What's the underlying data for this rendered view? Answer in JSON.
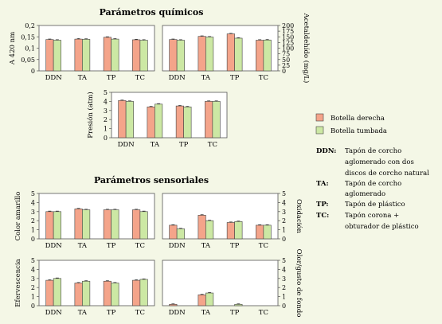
{
  "titles": {
    "chemical": "Parámetros químicos",
    "sensory": "Parámetros sensoriales"
  },
  "legend": {
    "series_a": "Botella derecha",
    "series_b": "Botella tumbada",
    "color_a": "#f4a48a",
    "color_b": "#cce8a4"
  },
  "glossary": [
    {
      "abbr": "DDN:",
      "lines": [
        "Tapón de corcho",
        "aglomerado con dos",
        "discos de corcho natural"
      ]
    },
    {
      "abbr": "TA:",
      "lines": [
        "Tapón de corcho",
        "aglomerado"
      ]
    },
    {
      "abbr": "TP:",
      "lines": [
        "Tapón de plástico"
      ]
    },
    {
      "abbr": "TC:",
      "lines": [
        "Tapón corona +",
        "obturador de plástico"
      ]
    }
  ],
  "chart_data": [
    {
      "id": "absorbance",
      "type": "bar",
      "categories": [
        "DDN",
        "TA",
        "TP",
        "TC"
      ],
      "ylabel": "A 420 nm",
      "ylim": [
        0,
        0.2
      ],
      "yticks": [
        "0",
        "0,05",
        "0,1",
        "0,15",
        "0,2"
      ],
      "axis_side": "left",
      "series": [
        {
          "name": "Botella derecha",
          "values": [
            0.138,
            0.14,
            0.148,
            0.137
          ]
        },
        {
          "name": "Botella tumbada",
          "values": [
            0.135,
            0.139,
            0.14,
            0.135
          ]
        }
      ]
    },
    {
      "id": "acetaldehyde",
      "type": "bar",
      "categories": [
        "DDN",
        "TA",
        "TP",
        "TC"
      ],
      "ylabel": "Acetaldehído (mg/L)",
      "ylim": [
        0,
        200
      ],
      "yticks": [
        "0",
        "25",
        "50",
        "75",
        "100",
        "125",
        "150",
        "175",
        "200"
      ],
      "axis_side": "right",
      "series": [
        {
          "name": "Botella derecha",
          "values": [
            138,
            152,
            163,
            135
          ]
        },
        {
          "name": "Botella tumbada",
          "values": [
            135,
            149,
            144,
            136
          ]
        }
      ]
    },
    {
      "id": "pressure",
      "type": "bar",
      "categories": [
        "DDN",
        "TA",
        "TP",
        "TC"
      ],
      "ylabel": "Presión (atm)",
      "ylim": [
        0,
        5
      ],
      "yticks": [
        "0",
        "1",
        "2",
        "3",
        "4",
        "5"
      ],
      "axis_side": "left",
      "series": [
        {
          "name": "Botella derecha",
          "values": [
            4.1,
            3.4,
            3.5,
            4.0
          ]
        },
        {
          "name": "Botella tumbada",
          "values": [
            4.0,
            3.7,
            3.4,
            4.0
          ]
        }
      ]
    },
    {
      "id": "yellow_color",
      "type": "bar",
      "categories": [
        "DDN",
        "TA",
        "TP",
        "TC"
      ],
      "ylabel": "Color amarillo",
      "ylim": [
        0,
        5
      ],
      "yticks": [
        "0",
        "1",
        "2",
        "3",
        "4",
        "5"
      ],
      "axis_side": "left",
      "series": [
        {
          "name": "Botella derecha",
          "values": [
            3.0,
            3.3,
            3.2,
            3.2
          ]
        },
        {
          "name": "Botella tumbada",
          "values": [
            3.0,
            3.2,
            3.2,
            3.0
          ]
        }
      ]
    },
    {
      "id": "oxidation",
      "type": "bar",
      "categories": [
        "DDN",
        "TA",
        "TP",
        "TC"
      ],
      "ylabel": "Oxidación",
      "ylim": [
        0,
        5
      ],
      "yticks": [
        "0",
        "1",
        "2",
        "3",
        "4",
        "5"
      ],
      "axis_side": "right",
      "series": [
        {
          "name": "Botella derecha",
          "values": [
            1.5,
            2.6,
            1.8,
            1.5
          ]
        },
        {
          "name": "Botella tumbada",
          "values": [
            1.1,
            2.0,
            1.9,
            1.5
          ]
        }
      ]
    },
    {
      "id": "effervescence",
      "type": "bar",
      "categories": [
        "DDN",
        "TA",
        "TP",
        "TC"
      ],
      "ylabel": "Efervescencia",
      "ylim": [
        0,
        5
      ],
      "yticks": [
        "0",
        "1",
        "2",
        "3",
        "4",
        "5"
      ],
      "axis_side": "left",
      "series": [
        {
          "name": "Botella derecha",
          "values": [
            2.8,
            2.5,
            2.7,
            2.8
          ]
        },
        {
          "name": "Botella tumbada",
          "values": [
            3.0,
            2.7,
            2.5,
            2.9
          ]
        }
      ]
    },
    {
      "id": "cork_taint",
      "type": "bar",
      "categories": [
        "DDN",
        "TA",
        "TP",
        "TC"
      ],
      "ylabel": "Olor/gusto de fondo",
      "ylim": [
        0,
        5
      ],
      "yticks": [
        "0",
        "1",
        "2",
        "3",
        "4",
        "5"
      ],
      "axis_side": "right",
      "series": [
        {
          "name": "Botella derecha",
          "values": [
            0.15,
            1.2,
            0,
            0
          ]
        },
        {
          "name": "Botella tumbada",
          "values": [
            0,
            1.4,
            0.15,
            0
          ]
        }
      ]
    }
  ]
}
